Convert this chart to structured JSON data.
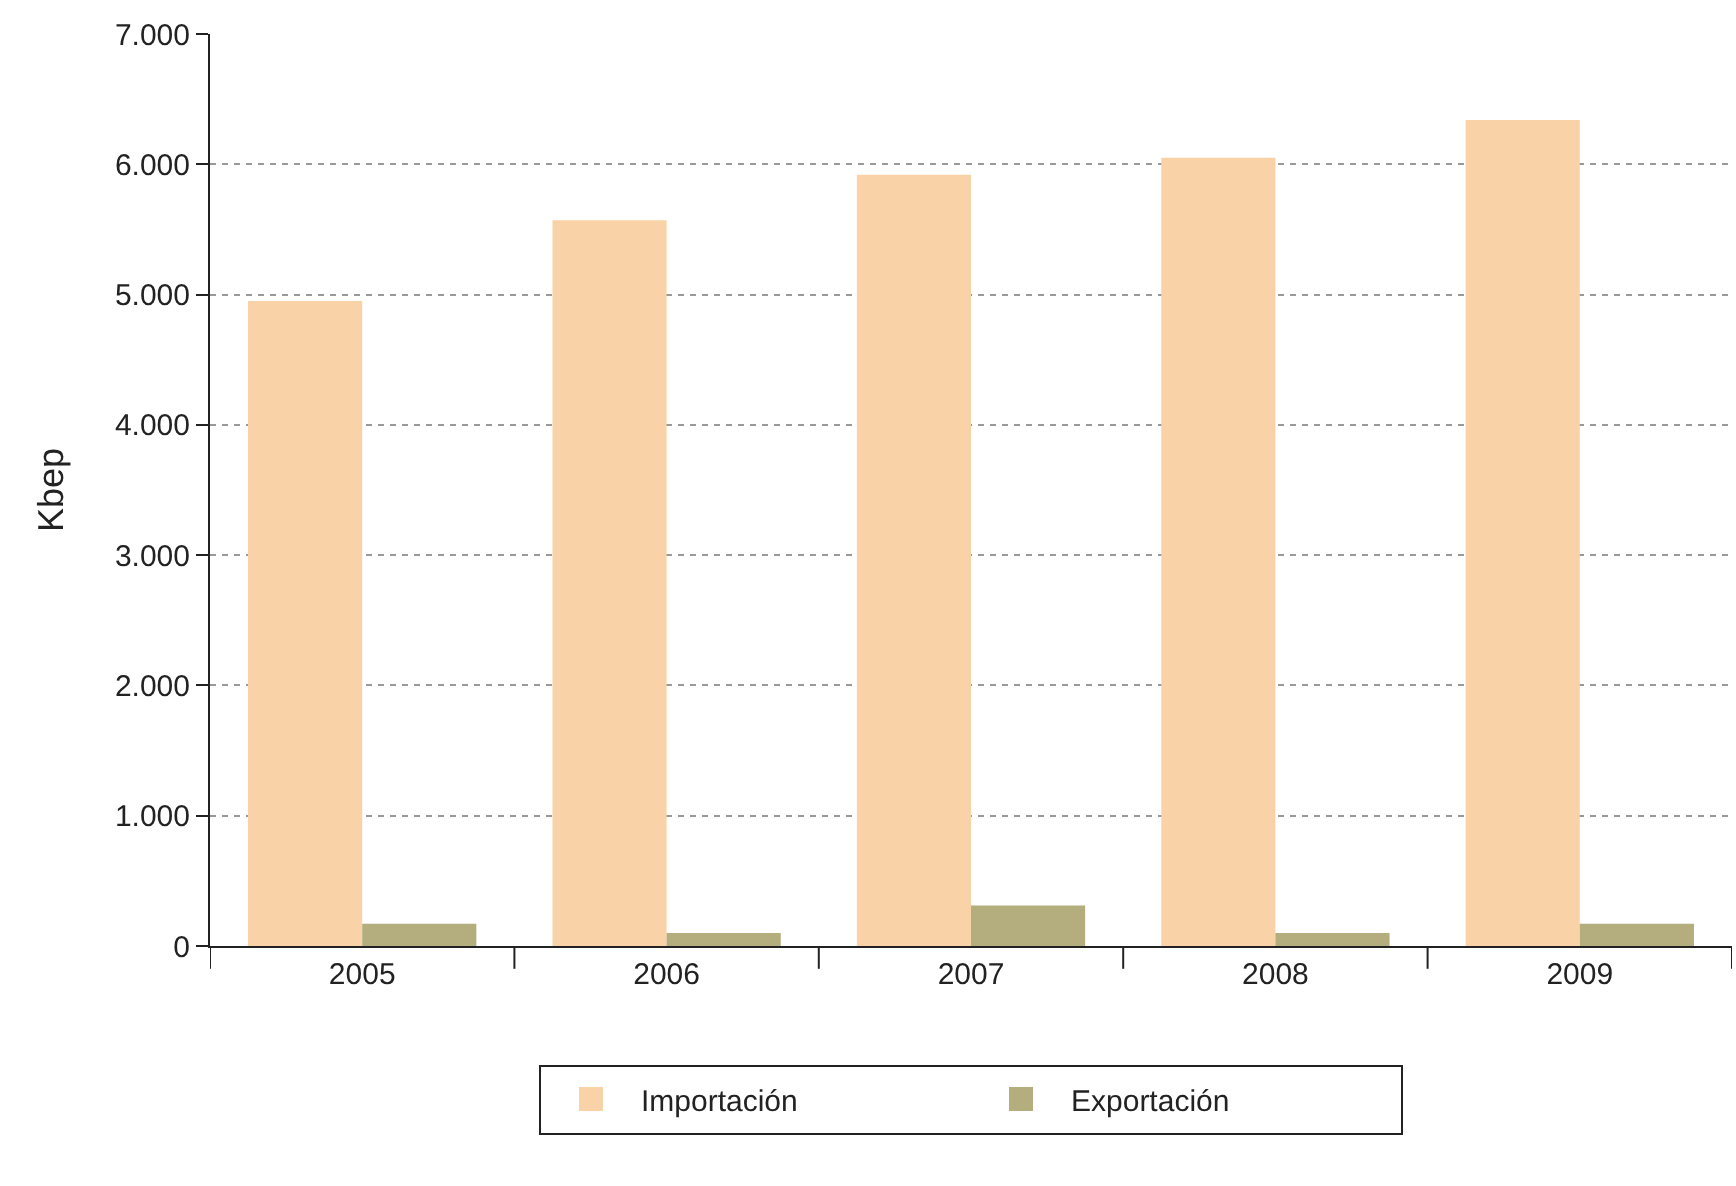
{
  "chart_data": {
    "type": "bar",
    "ylabel": "Kbep",
    "categories": [
      "2005",
      "2006",
      "2007",
      "2008",
      "2009"
    ],
    "series": [
      {
        "name": "Importación",
        "color": "#f9d3a7",
        "values": [
          4950,
          5570,
          5920,
          6050,
          6340
        ]
      },
      {
        "name": "Exportación",
        "color": "#b4ad7e",
        "values": [
          170,
          100,
          310,
          100,
          170
        ]
      }
    ],
    "ylim": [
      0,
      7000
    ],
    "yticks": [
      0,
      {
        "value": 1000,
        "label": "1.000"
      },
      {
        "value": 2000,
        "label": "2.000"
      },
      {
        "value": 3000,
        "label": "3.000"
      },
      {
        "value": 4000,
        "label": "4.000"
      },
      {
        "value": 5000,
        "label": "5.000"
      },
      {
        "value": 6000,
        "label": "6.000"
      },
      {
        "value": 7000,
        "label": "7.000"
      }
    ],
    "grid": "y",
    "legend": "bottom"
  }
}
